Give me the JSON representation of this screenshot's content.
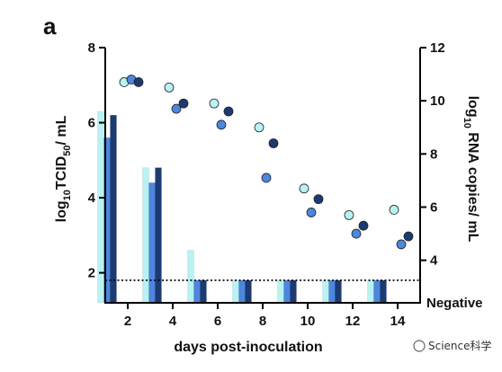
{
  "panel_label": "a",
  "watermark": "Science科学",
  "chart_data": {
    "type": "bar",
    "x_title": "days post-inoculation",
    "y_left_title": {
      "pre": "log",
      "sub10": "10",
      "mid": "TCID",
      "sub50": "50",
      "post": "/ mL"
    },
    "y_right_title": {
      "pre": "log",
      "sub10": "10",
      "post": " RNA copies/ mL"
    },
    "y_left_lim": [
      1.2,
      8
    ],
    "y_right_lim": [
      2.4,
      12
    ],
    "y_left_ticks": [
      2,
      4,
      6,
      8
    ],
    "y_right_ticks": [
      4,
      6,
      8,
      10,
      12
    ],
    "y_right_negative_label": "Negative",
    "x_ticks": [
      2,
      4,
      6,
      8,
      10,
      12,
      14
    ],
    "x_lim": [
      1,
      15
    ],
    "detection_limit_left": 1.8,
    "grid": false,
    "series_colors": [
      "#b8f2f2",
      "#4d86dd",
      "#1c3a72"
    ],
    "bars": [
      {
        "day": 1,
        "values": [
          6.3,
          5.6,
          6.2
        ]
      },
      {
        "day": 3,
        "values": [
          4.8,
          4.4,
          4.8
        ]
      },
      {
        "day": 5,
        "values": [
          2.6,
          1.8,
          1.8
        ]
      },
      {
        "day": 7,
        "values": [
          1.8,
          1.8,
          1.8
        ]
      },
      {
        "day": 9,
        "values": [
          1.8,
          1.8,
          1.8
        ]
      },
      {
        "day": 11,
        "values": [
          1.8,
          1.8,
          1.8
        ]
      },
      {
        "day": 13,
        "values": [
          1.8,
          1.8,
          1.8
        ]
      }
    ],
    "points": [
      {
        "day": 2,
        "values": [
          10.7,
          10.8,
          10.7
        ]
      },
      {
        "day": 4,
        "values": [
          10.5,
          9.7,
          9.9
        ]
      },
      {
        "day": 6,
        "values": [
          9.9,
          9.1,
          9.6
        ]
      },
      {
        "day": 8,
        "values": [
          9.0,
          7.1,
          8.4
        ]
      },
      {
        "day": 10,
        "values": [
          6.7,
          5.8,
          6.3
        ]
      },
      {
        "day": 12,
        "values": [
          5.7,
          5.0,
          5.3
        ]
      },
      {
        "day": 14,
        "values": [
          5.9,
          4.6,
          4.9
        ]
      }
    ]
  }
}
